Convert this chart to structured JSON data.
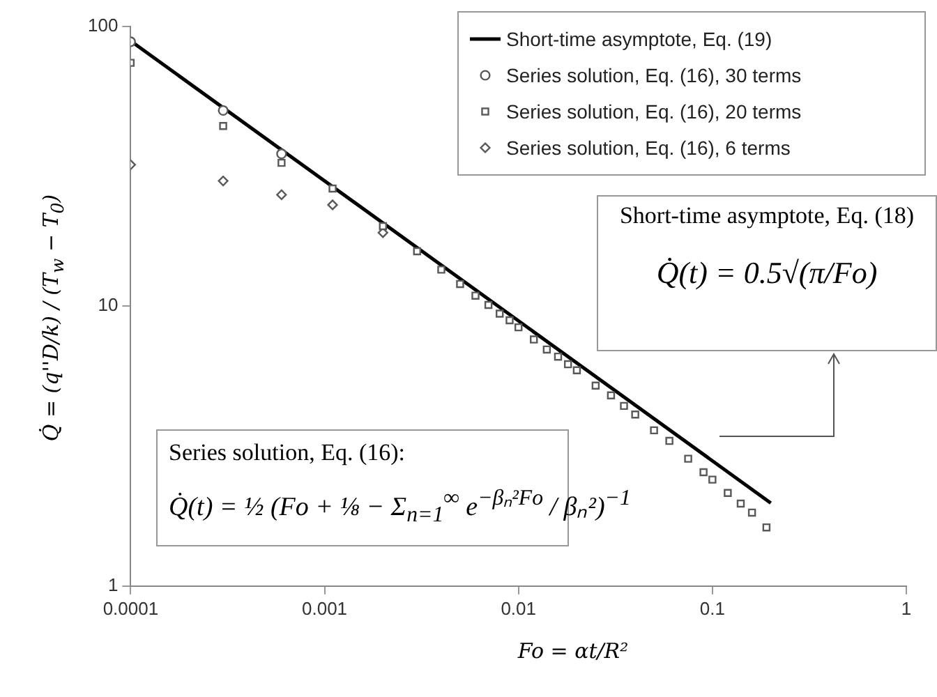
{
  "chart_data": {
    "type": "scatter",
    "xlabel": "Fo = αt/R²",
    "ylabel": "Q̇ = (q''D/k) / (T$_{w}$ − T$_{0}$)",
    "log": "xy",
    "xlim": [
      0.0001,
      1
    ],
    "ylim": [
      1,
      100
    ],
    "xticks": [
      0.0001,
      0.001,
      0.01,
      0.1,
      1
    ],
    "yticks": [
      1,
      10,
      100
    ],
    "legend": "top right",
    "series": [
      {
        "name": "Short-time asymptote, Eq. (19)",
        "type": "line",
        "marker": "none",
        "line_style": "solid",
        "color": "#000000",
        "x": [
          0.0001,
          0.2
        ],
        "values": [
          88.6,
          1.98
        ]
      },
      {
        "name": "Series solution, Eq. (16), 30 terms",
        "marker": "circle",
        "color": "#595959",
        "x": [
          0.0001,
          0.0003,
          0.0006
        ],
        "values": [
          88,
          50,
          35
        ]
      },
      {
        "name": "Series solution, Eq. (16), 20 terms",
        "marker": "square",
        "color": "#595959",
        "x": [
          0.0001,
          0.0003,
          0.0006,
          0.0011,
          0.002,
          0.003,
          0.004,
          0.005,
          0.006,
          0.007,
          0.008,
          0.009,
          0.01,
          0.012,
          0.014,
          0.016,
          0.018,
          0.02,
          0.025,
          0.03,
          0.035,
          0.04,
          0.05,
          0.06,
          0.075,
          0.09,
          0.1,
          0.12,
          0.14,
          0.16,
          0.19
        ],
        "values": [
          74,
          44,
          32.5,
          26.3,
          19.3,
          15.7,
          13.5,
          12,
          10.9,
          10.1,
          9.4,
          8.9,
          8.4,
          7.6,
          7,
          6.6,
          6.2,
          5.9,
          5.2,
          4.8,
          4.4,
          4.1,
          3.6,
          3.3,
          2.85,
          2.55,
          2.4,
          2.15,
          1.97,
          1.83,
          1.62
        ]
      },
      {
        "name": "Series solution, Eq. (16), 6 terms",
        "marker": "diamond",
        "color": "#595959",
        "x": [
          0.0001,
          0.0003,
          0.0006,
          0.0011,
          0.002
        ],
        "values": [
          32,
          28,
          25,
          23,
          18.3
        ]
      }
    ],
    "annotations": [
      "Short-time asymptote, Eq. (18)",
      "Q̇(t) = 0.5√(π/Fo)",
      "Series solution, Eq. (16):",
      "Q̇(t) = ½ (Fo + ⅛ − Σ$_{n=1}$$^{∞}$ e$^{−βₙ²Fo}$ / βₙ²)$^{−1}$"
    ]
  }
}
